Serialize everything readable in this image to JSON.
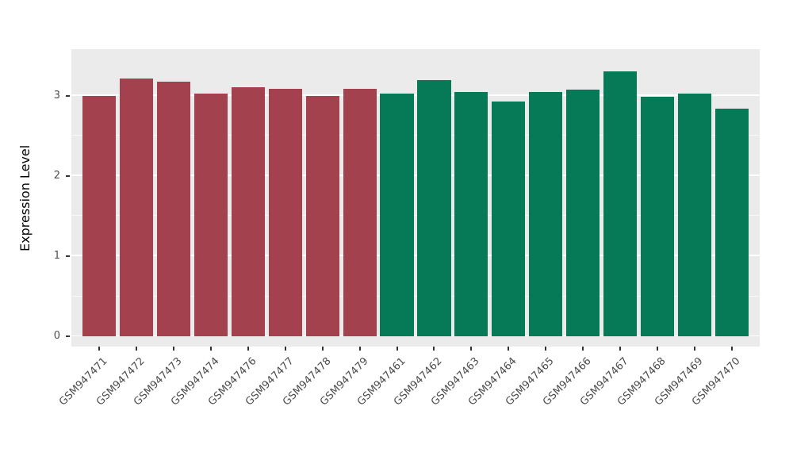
{
  "chart_data": {
    "type": "bar",
    "title": "",
    "xlabel": "",
    "ylabel": "Expression Level",
    "ylim": [
      0,
      3.45
    ],
    "yticks": [
      0,
      1,
      2,
      3
    ],
    "yticks_minor": [
      0.5,
      1.5,
      2.5
    ],
    "grid": true,
    "legend": "none",
    "panel_background": "#EBEBEB",
    "grid_color": "#FFFFFF",
    "axis_text_color": "#4D4D4D",
    "categories": [
      "GSM947471",
      "GSM947472",
      "GSM947473",
      "GSM947474",
      "GSM947476",
      "GSM947477",
      "GSM947478",
      "GSM947479",
      "GSM947461",
      "GSM947462",
      "GSM947463",
      "GSM947464",
      "GSM947465",
      "GSM947466",
      "GSM947467",
      "GSM947468",
      "GSM947469",
      "GSM947470"
    ],
    "values": [
      3.0,
      3.21,
      3.17,
      3.03,
      3.1,
      3.08,
      3.0,
      3.08,
      3.03,
      3.19,
      3.04,
      2.93,
      3.04,
      3.07,
      3.3,
      2.99,
      3.03,
      2.84
    ],
    "bar_colors": [
      "#A3414E",
      "#A3414E",
      "#A3414E",
      "#A3414E",
      "#A3414E",
      "#A3414E",
      "#A3414E",
      "#A3414E",
      "#067A57",
      "#067A57",
      "#067A57",
      "#067A57",
      "#067A57",
      "#067A57",
      "#067A57",
      "#067A57",
      "#067A57",
      "#067A57"
    ]
  }
}
